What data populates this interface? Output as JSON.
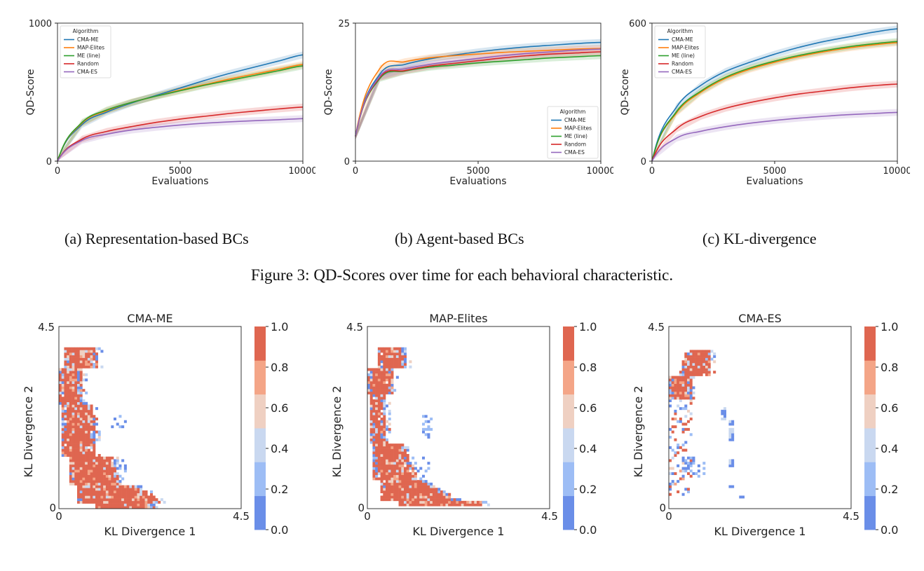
{
  "figure3": {
    "caption": "Figure 3: QD-Scores over time for each behavioral characteristic.",
    "subcaptions": [
      "(a) Representation-based BCs",
      "(b) Agent-based BCs",
      "(c) KL-divergence"
    ]
  },
  "chart_data": [
    {
      "type": "line",
      "xlabel": "Evaluations",
      "ylabel": "QD-Score",
      "xlim": [
        0,
        10000
      ],
      "ylim": [
        0,
        1000
      ],
      "xticks": [
        "0",
        "5000",
        "10000"
      ],
      "yticks": [
        "0",
        "1000"
      ],
      "legend_title": "Algorithm",
      "legend_position": "upper-left",
      "grid": false,
      "x": [
        0,
        1000,
        2000,
        3000,
        4000,
        5000,
        6000,
        7000,
        8000,
        9000,
        10000
      ],
      "series": [
        {
          "name": "CMA-ME",
          "color": "#1f77b4",
          "values": [
            0,
            265,
            355,
            420,
            475,
            530,
            585,
            635,
            680,
            725,
            770
          ]
        },
        {
          "name": "MAP-Elites",
          "color": "#ff7f0e",
          "values": [
            0,
            275,
            365,
            425,
            470,
            515,
            555,
            595,
            630,
            665,
            700
          ]
        },
        {
          "name": "ME (line)",
          "color": "#2ca02c",
          "values": [
            0,
            280,
            370,
            425,
            470,
            510,
            550,
            585,
            620,
            655,
            690
          ]
        },
        {
          "name": "Random",
          "color": "#d62728",
          "values": [
            0,
            160,
            215,
            250,
            280,
            305,
            325,
            345,
            362,
            378,
            392
          ]
        },
        {
          "name": "CMA-ES",
          "color": "#9467bd",
          "values": [
            0,
            150,
            195,
            225,
            245,
            262,
            275,
            285,
            293,
            300,
            308
          ]
        }
      ]
    },
    {
      "type": "line",
      "xlabel": "Evaluations",
      "ylabel": "QD-Score",
      "xlim": [
        0,
        10000
      ],
      "ylim": [
        0,
        25
      ],
      "xticks": [
        "0",
        "5000",
        "10000"
      ],
      "yticks": [
        "0",
        "25"
      ],
      "legend_title": "Algorithm",
      "legend_position": "lower-right",
      "grid": false,
      "x": [
        0,
        1000,
        2000,
        3000,
        4000,
        5000,
        6000,
        7000,
        8000,
        9000,
        10000
      ],
      "series": [
        {
          "name": "CMA-ME",
          "color": "#1f77b4",
          "values": [
            4.5,
            15.8,
            17.5,
            18.5,
            19.2,
            19.8,
            20.3,
            20.7,
            21.0,
            21.3,
            21.5
          ]
        },
        {
          "name": "MAP-Elites",
          "color": "#ff7f0e",
          "values": [
            4.5,
            16.8,
            18.0,
            18.7,
            19.1,
            19.4,
            19.7,
            19.9,
            20.1,
            20.3,
            20.4
          ]
        },
        {
          "name": "ME (line)",
          "color": "#2ca02c",
          "values": [
            4.5,
            15.0,
            16.3,
            17.0,
            17.4,
            17.8,
            18.1,
            18.4,
            18.7,
            18.9,
            19.1
          ]
        },
        {
          "name": "Random",
          "color": "#d62728",
          "values": [
            4.5,
            15.2,
            16.4,
            17.2,
            17.7,
            18.2,
            18.7,
            19.1,
            19.4,
            19.6,
            19.8
          ]
        },
        {
          "name": "CMA-ES",
          "color": "#9467bd",
          "values": [
            4.5,
            15.4,
            16.7,
            17.5,
            18.1,
            18.6,
            19.1,
            19.5,
            19.8,
            20.1,
            20.3
          ]
        }
      ]
    },
    {
      "type": "line",
      "xlabel": "Evaluations",
      "ylabel": "QD-Score",
      "xlim": [
        0,
        10000
      ],
      "ylim": [
        0,
        600
      ],
      "xticks": [
        "0",
        "5000",
        "10000"
      ],
      "yticks": [
        "0",
        "600"
      ],
      "legend_title": "Algorithm",
      "legend_position": "upper-left",
      "grid": false,
      "x": [
        0,
        1000,
        2000,
        3000,
        4000,
        5000,
        6000,
        7000,
        8000,
        9000,
        10000
      ],
      "series": [
        {
          "name": "CMA-ME",
          "color": "#1f77b4",
          "values": [
            0,
            235,
            330,
            390,
            430,
            465,
            495,
            520,
            540,
            560,
            575
          ]
        },
        {
          "name": "MAP-Elites",
          "color": "#ff7f0e",
          "values": [
            0,
            210,
            300,
            360,
            400,
            430,
            455,
            475,
            492,
            505,
            515
          ]
        },
        {
          "name": "ME (line)",
          "color": "#2ca02c",
          "values": [
            0,
            215,
            305,
            365,
            405,
            435,
            460,
            480,
            497,
            510,
            520
          ]
        },
        {
          "name": "Random",
          "color": "#d62728",
          "values": [
            0,
            140,
            195,
            230,
            255,
            275,
            292,
            305,
            318,
            328,
            335
          ]
        },
        {
          "name": "CMA-ES",
          "color": "#9467bd",
          "values": [
            0,
            100,
            130,
            150,
            165,
            177,
            187,
            195,
            202,
            207,
            212
          ]
        }
      ]
    },
    {
      "type": "heatmap",
      "title": "CMA-ME",
      "xlabel": "KL Divergence 1",
      "ylabel": "KL Divergence 2",
      "xlim": [
        0,
        4.5
      ],
      "ylim": [
        0,
        4.5
      ],
      "xticks": [
        "0",
        "4.5"
      ],
      "yticks": [
        "0",
        "4.5"
      ],
      "colorbar": {
        "min": 0.0,
        "max": 1.0,
        "ticks": [
          "0.0",
          "0.2",
          "0.4",
          "0.6",
          "0.8",
          "1.0"
        ],
        "colors": [
          "#6a8ee8",
          "#9dbdf5",
          "#c9d8f0",
          "#efd0c2",
          "#f4a587",
          "#df6650"
        ]
      },
      "grid_size": 70,
      "archive_sketch": "filled band from (0,3.4) curving down to (2.8,0.1); scattered low-value cells near (1.6,2.2) and (1.7,1.1)",
      "sketch": {
        "kind": "cma-me",
        "seed": 11
      }
    },
    {
      "type": "heatmap",
      "title": "MAP-Elites",
      "xlabel": "KL Divergence 1",
      "ylabel": "KL Divergence 2",
      "xlim": [
        0,
        4.5
      ],
      "ylim": [
        0,
        4.5
      ],
      "xticks": [
        "0",
        "4.5"
      ],
      "yticks": [
        "0",
        "4.5"
      ],
      "colorbar": {
        "min": 0.0,
        "max": 1.0,
        "ticks": [
          "0.0",
          "0.2",
          "0.4",
          "0.6",
          "0.8",
          "1.0"
        ],
        "colors": [
          "#6a8ee8",
          "#9dbdf5",
          "#c9d8f0",
          "#efd0c2",
          "#f4a587",
          "#df6650"
        ]
      },
      "grid_size": 70,
      "archive_sketch": "filled band from (0,3.7) curving down to (3.0,0.1)",
      "sketch": {
        "kind": "map-elites",
        "seed": 23
      }
    },
    {
      "type": "heatmap",
      "title": "CMA-ES",
      "xlabel": "KL Divergence 1",
      "ylabel": "KL Divergence 2",
      "xlim": [
        0,
        4.5
      ],
      "ylim": [
        0,
        4.5
      ],
      "xticks": [
        "0",
        "4.5"
      ],
      "yticks": [
        "0",
        "4.5"
      ],
      "colorbar": {
        "min": 0.0,
        "max": 1.0,
        "ticks": [
          "0.0",
          "0.2",
          "0.4",
          "0.6",
          "0.8",
          "1.0"
        ],
        "colors": [
          "#6a8ee8",
          "#9dbdf5",
          "#c9d8f0",
          "#efd0c2",
          "#f4a587",
          "#df6650"
        ]
      },
      "grid_size": 70,
      "archive_sketch": "dense blob near (0.2–1.1, 3.2–4.0); scattered cells below to (1.6,0.3)",
      "sketch": {
        "kind": "cma-es",
        "seed": 37
      }
    }
  ]
}
